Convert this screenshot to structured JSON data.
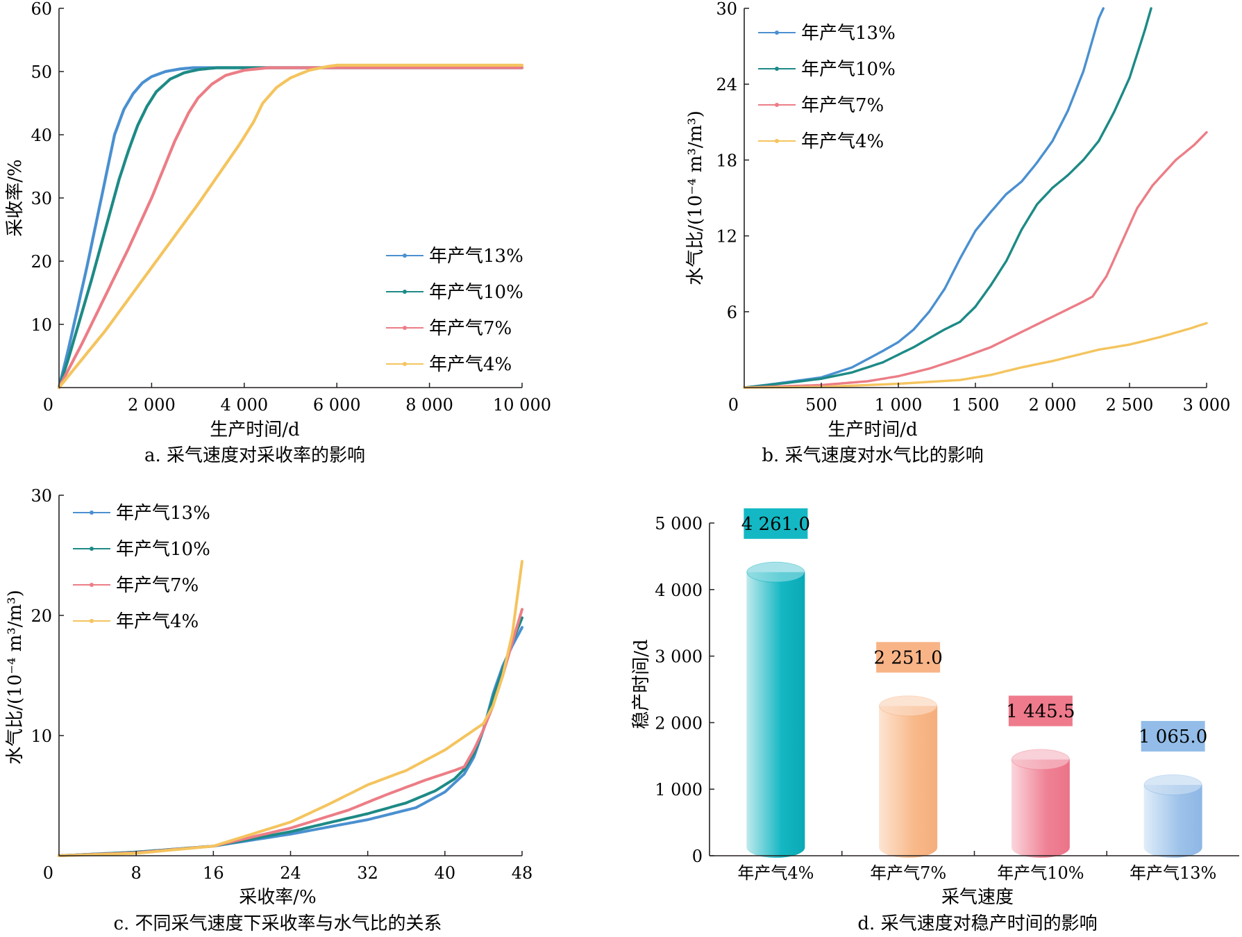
{
  "colors": {
    "s13": "#4a90d0",
    "s10": "#1d8a86",
    "s7": "#ec7d86",
    "s4": "#f4c45e",
    "axis": "#231f20"
  },
  "panels": {
    "a": {
      "caption": "a. 采气速度对采收率的影响"
    },
    "b": {
      "caption": "b. 采气速度对水气比的影响"
    },
    "c": {
      "caption": "c. 不同采气速度下采收率与水气比的关系"
    },
    "d": {
      "caption": "d. 采气速度对稳产时间的影响"
    }
  },
  "chart_data": [
    {
      "id": "a",
      "type": "line",
      "xlabel": "生产时间/d",
      "ylabel": "采收率/%",
      "xlim": [
        0,
        10000
      ],
      "ylim": [
        0,
        60
      ],
      "x_ticks": [
        "0",
        "2 000",
        "4 000",
        "6 000",
        "8 000",
        "10 000"
      ],
      "y_ticks": [
        "10",
        "20",
        "30",
        "40",
        "50",
        "60"
      ],
      "legend_position": "lower-right",
      "series": [
        {
          "name": "年产气13%",
          "color_key": "s13",
          "points": [
            [
              0,
              0
            ],
            [
              200,
              6
            ],
            [
              400,
              12.5
            ],
            [
              600,
              19
            ],
            [
              800,
              26
            ],
            [
              1000,
              33
            ],
            [
              1200,
              40
            ],
            [
              1400,
              44
            ],
            [
              1600,
              46.5
            ],
            [
              1800,
              48.2
            ],
            [
              2000,
              49.2
            ],
            [
              2300,
              50
            ],
            [
              2600,
              50.4
            ],
            [
              2900,
              50.6
            ],
            [
              10000,
              50.6
            ]
          ]
        },
        {
          "name": "年产气10%",
          "color_key": "s10",
          "points": [
            [
              0,
              0
            ],
            [
              200,
              4.5
            ],
            [
              400,
              9.5
            ],
            [
              700,
              17
            ],
            [
              1000,
              25
            ],
            [
              1300,
              33
            ],
            [
              1500,
              37.5
            ],
            [
              1700,
              41.5
            ],
            [
              1900,
              44.5
            ],
            [
              2100,
              46.8
            ],
            [
              2400,
              48.8
            ],
            [
              2700,
              49.8
            ],
            [
              3000,
              50.3
            ],
            [
              3400,
              50.6
            ],
            [
              10000,
              50.6
            ]
          ]
        },
        {
          "name": "年产气7%",
          "color_key": "s7",
          "points": [
            [
              0,
              0
            ],
            [
              500,
              7
            ],
            [
              1000,
              14.5
            ],
            [
              1500,
              22
            ],
            [
              2000,
              30
            ],
            [
              2500,
              39
            ],
            [
              2800,
              43.5
            ],
            [
              3000,
              45.8
            ],
            [
              3300,
              48
            ],
            [
              3600,
              49.4
            ],
            [
              4000,
              50.2
            ],
            [
              4500,
              50.6
            ],
            [
              10000,
              50.6
            ]
          ]
        },
        {
          "name": "年产气4%",
          "color_key": "s4",
          "points": [
            [
              0,
              0
            ],
            [
              1000,
              9
            ],
            [
              2000,
              19
            ],
            [
              3000,
              29
            ],
            [
              3900,
              38.5
            ],
            [
              4200,
              42
            ],
            [
              4400,
              45
            ],
            [
              4700,
              47.5
            ],
            [
              5000,
              49
            ],
            [
              5400,
              50.2
            ],
            [
              5800,
              50.8
            ],
            [
              6000,
              51
            ],
            [
              10000,
              51
            ]
          ]
        }
      ]
    },
    {
      "id": "b",
      "type": "line",
      "xlabel": "生产时间/d",
      "ylabel": "水气比/(10⁻⁴ m³/m³)",
      "xlim": [
        0,
        3000
      ],
      "ylim": [
        0,
        30
      ],
      "x_ticks": [
        "0",
        "500",
        "1 000",
        "1 500",
        "2 000",
        "2 500",
        "3 000"
      ],
      "y_ticks": [
        "6",
        "12",
        "18",
        "24",
        "30"
      ],
      "legend_position": "top-left",
      "series": [
        {
          "name": "年产气13%",
          "color_key": "s13",
          "points": [
            [
              0,
              0
            ],
            [
              200,
              0.3
            ],
            [
              500,
              0.8
            ],
            [
              700,
              1.6
            ],
            [
              900,
              2.9
            ],
            [
              1000,
              3.6
            ],
            [
              1100,
              4.6
            ],
            [
              1200,
              6
            ],
            [
              1300,
              7.8
            ],
            [
              1400,
              10.2
            ],
            [
              1500,
              12.4
            ],
            [
              1600,
              13.9
            ],
            [
              1700,
              15.3
            ],
            [
              1800,
              16.3
            ],
            [
              1900,
              17.8
            ],
            [
              2000,
              19.5
            ],
            [
              2100,
              21.9
            ],
            [
              2200,
              25
            ],
            [
              2300,
              29.2
            ],
            [
              2330,
              30
            ]
          ]
        },
        {
          "name": "年产气10%",
          "color_key": "s10",
          "points": [
            [
              0,
              0
            ],
            [
              300,
              0.4
            ],
            [
              500,
              0.7
            ],
            [
              700,
              1.2
            ],
            [
              900,
              2
            ],
            [
              1000,
              2.6
            ],
            [
              1100,
              3.2
            ],
            [
              1200,
              3.9
            ],
            [
              1300,
              4.6
            ],
            [
              1400,
              5.2
            ],
            [
              1500,
              6.4
            ],
            [
              1600,
              8.1
            ],
            [
              1700,
              10
            ],
            [
              1800,
              12.5
            ],
            [
              1900,
              14.5
            ],
            [
              2000,
              15.8
            ],
            [
              2100,
              16.8
            ],
            [
              2200,
              18
            ],
            [
              2300,
              19.5
            ],
            [
              2400,
              21.8
            ],
            [
              2500,
              24.5
            ],
            [
              2600,
              28.3
            ],
            [
              2640,
              30
            ]
          ]
        },
        {
          "name": "年产气7%",
          "color_key": "s7",
          "points": [
            [
              0,
              0
            ],
            [
              500,
              0.2
            ],
            [
              800,
              0.5
            ],
            [
              1000,
              0.9
            ],
            [
              1200,
              1.5
            ],
            [
              1400,
              2.3
            ],
            [
              1600,
              3.2
            ],
            [
              1800,
              4.4
            ],
            [
              2000,
              5.6
            ],
            [
              2100,
              6.2
            ],
            [
              2200,
              6.8
            ],
            [
              2260,
              7.2
            ],
            [
              2350,
              8.8
            ],
            [
              2450,
              11.5
            ],
            [
              2550,
              14.2
            ],
            [
              2650,
              16
            ],
            [
              2800,
              18
            ],
            [
              2920,
              19.2
            ],
            [
              3000,
              20.2
            ]
          ]
        },
        {
          "name": "年产气4%",
          "color_key": "s4",
          "points": [
            [
              0,
              0
            ],
            [
              500,
              0.05
            ],
            [
              1000,
              0.3
            ],
            [
              1400,
              0.6
            ],
            [
              1600,
              1.0
            ],
            [
              1800,
              1.6
            ],
            [
              2000,
              2.1
            ],
            [
              2200,
              2.7
            ],
            [
              2300,
              3.0
            ],
            [
              2500,
              3.4
            ],
            [
              2700,
              4.0
            ],
            [
              2900,
              4.7
            ],
            [
              3000,
              5.1
            ]
          ]
        }
      ]
    },
    {
      "id": "c",
      "type": "line",
      "xlabel": "采收率/%",
      "ylabel": "水气比/(10⁻⁴ m³/m³)",
      "xlim": [
        0,
        48
      ],
      "ylim": [
        0,
        30
      ],
      "x_ticks": [
        "0",
        "8",
        "16",
        "24",
        "32",
        "40",
        "48"
      ],
      "y_ticks": [
        "10",
        "20",
        "30"
      ],
      "legend_position": "top-left",
      "series": [
        {
          "name": "年产气13%",
          "color_key": "s13",
          "points": [
            [
              0,
              0
            ],
            [
              8,
              0.3
            ],
            [
              16,
              0.8
            ],
            [
              24,
              1.8
            ],
            [
              32,
              3.0
            ],
            [
              37,
              4.0
            ],
            [
              40,
              5.3
            ],
            [
              42,
              6.8
            ],
            [
              43,
              8.2
            ],
            [
              44,
              10.5
            ],
            [
              45,
              13.5
            ],
            [
              46,
              15.8
            ],
            [
              47,
              17.5
            ],
            [
              48,
              19
            ]
          ]
        },
        {
          "name": "年产气10%",
          "color_key": "s10",
          "points": [
            [
              0,
              0
            ],
            [
              8,
              0.3
            ],
            [
              16,
              0.8
            ],
            [
              24,
              2.0
            ],
            [
              32,
              3.5
            ],
            [
              36,
              4.4
            ],
            [
              39,
              5.4
            ],
            [
              41,
              6.4
            ],
            [
              42,
              7.2
            ],
            [
              43,
              8.5
            ],
            [
              44,
              10.5
            ],
            [
              45,
              13.2
            ],
            [
              46,
              15.5
            ],
            [
              47,
              17.8
            ],
            [
              48,
              19.8
            ]
          ]
        },
        {
          "name": "年产气7%",
          "color_key": "s7",
          "points": [
            [
              0,
              0
            ],
            [
              8,
              0.25
            ],
            [
              16,
              0.8
            ],
            [
              24,
              2.3
            ],
            [
              30,
              3.8
            ],
            [
              34,
              5.1
            ],
            [
              38,
              6.3
            ],
            [
              41,
              7.1
            ],
            [
              42,
              7.4
            ],
            [
              43,
              8.8
            ],
            [
              44,
              10.5
            ],
            [
              45,
              12.5
            ],
            [
              46,
              15
            ],
            [
              47,
              17.8
            ],
            [
              48,
              20.5
            ]
          ]
        },
        {
          "name": "年产气4%",
          "color_key": "s4",
          "points": [
            [
              0,
              0
            ],
            [
              8,
              0.2
            ],
            [
              16,
              0.8
            ],
            [
              20,
              1.8
            ],
            [
              24,
              2.8
            ],
            [
              28,
              4.3
            ],
            [
              32,
              5.9
            ],
            [
              36,
              7.1
            ],
            [
              40,
              8.8
            ],
            [
              42,
              9.9
            ],
            [
              44,
              11.0
            ],
            [
              45,
              12.5
            ],
            [
              46,
              15.0
            ],
            [
              47,
              18.5
            ],
            [
              48,
              24.5
            ]
          ]
        }
      ]
    },
    {
      "id": "d",
      "type": "bar",
      "xlabel": "采气速度",
      "ylabel": "稳产时间/d",
      "ylim": [
        0,
        5000
      ],
      "y_ticks": [
        "0",
        "1 000",
        "2 000",
        "3 000",
        "4 000",
        "5 000"
      ],
      "categories": [
        "年产气4%",
        "年产气7%",
        "年产气10%",
        "年产气13%"
      ],
      "values": [
        4261.0,
        2251.0,
        1445.5,
        1065.0
      ],
      "value_labels": [
        "4 261.0",
        "2 251.0",
        "1 445.5",
        "1 065.0"
      ],
      "bar_colors": [
        "#0fb3c1",
        "#f7b585",
        "#ee7f91",
        "#92bbe6"
      ],
      "label_box_colors": [
        "#14b8c4",
        "#f8b487",
        "#ee7a8c",
        "#93bde8"
      ]
    }
  ]
}
